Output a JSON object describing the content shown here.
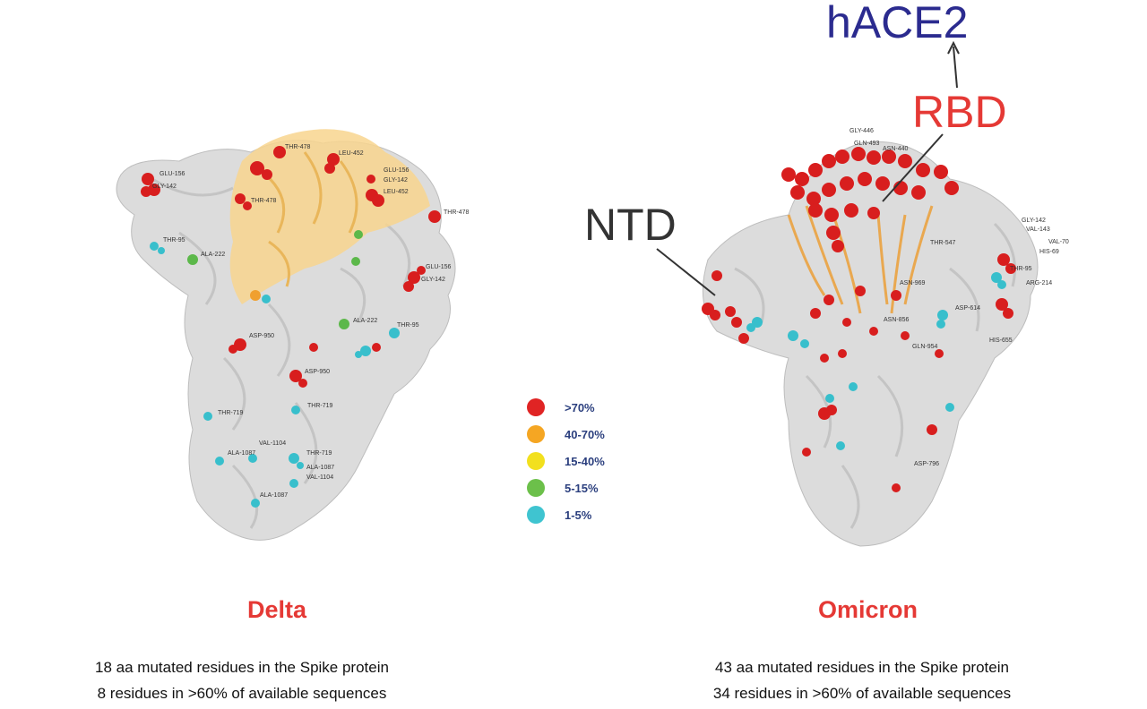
{
  "labels": {
    "hace2": "hACE2",
    "rbd": "RBD",
    "ntd": "NTD"
  },
  "legend": [
    {
      "label": ">70%",
      "color": "#e02424"
    },
    {
      "label": "40-70%",
      "color": "#f5a623"
    },
    {
      "label": "15-40%",
      "color": "#f2e01e"
    },
    {
      "label": "5-15%",
      "color": "#6cc04a"
    },
    {
      "label": "1-5%",
      "color": "#3fc4d0"
    }
  ],
  "delta": {
    "title": "Delta",
    "summary_line1": "18 aa mutated residues in the Spike protein",
    "summary_line2": "8 residues in >60% of available sequences",
    "residue_labels": [
      "GLU-156",
      "GLY-142",
      "THR-478",
      "LEU-452",
      "GLU-156",
      "GLY-142",
      "LEU-452",
      "THR-478",
      "THR-478",
      "THR-95",
      "ALA-222",
      "GLU-156",
      "GLY-142",
      "ALA-222",
      "THR-95",
      "ASP-950",
      "ASP-950",
      "THR-719",
      "THR-719",
      "VAL-1104",
      "ALA-1087",
      "THR-719",
      "ALA-1087",
      "VAL-1104",
      "ALA-1087"
    ]
  },
  "omicron": {
    "title": "Omicron",
    "summary_line1": "43 aa mutated residues in the Spike protein",
    "summary_line2": "34 residues in >60% of available sequences",
    "residue_labels": [
      "GLY-446",
      "GLN-493",
      "ASN-440",
      "THR-547",
      "GLY-142",
      "VAL-143",
      "VAL-70",
      "HIS-69",
      "THR-95",
      "ARG-214",
      "ASN-969",
      "ASN-856",
      "ASP-614",
      "GLN-954",
      "HIS-655",
      "ASP-796"
    ]
  },
  "colors": {
    "red": "#e02424",
    "rbd_label": "#e53935",
    "hace2_label": "#2b2b8f",
    "legend_text": "#2b3f7e"
  }
}
